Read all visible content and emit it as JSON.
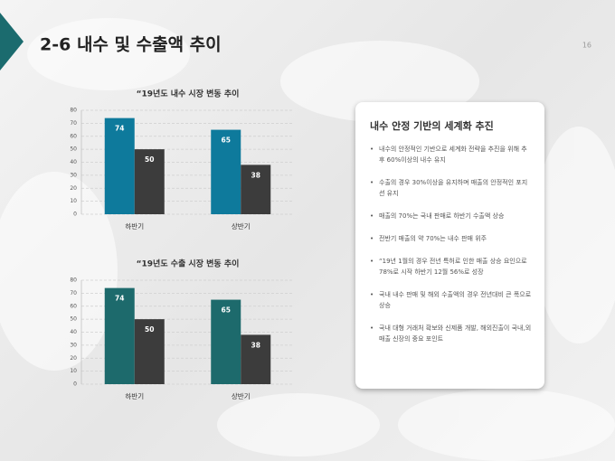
{
  "slide": {
    "title": "2-6 내수 및 수출액 추이",
    "page_number": 16
  },
  "chart_data": [
    {
      "type": "bar",
      "title": "“19년도 내수 시장 변동 추이",
      "categories": [
        "하반기",
        "상반기"
      ],
      "series": [
        {
          "color": "#0e7a9c",
          "values": [
            74,
            65
          ]
        },
        {
          "color": "#3c3c3c",
          "values": [
            50,
            38
          ]
        }
      ],
      "ylim": [
        0,
        80
      ],
      "yticks": [
        0,
        10,
        20,
        30,
        40,
        50,
        60,
        70,
        80
      ],
      "grid": true
    },
    {
      "type": "bar",
      "title": "“19년도 수출 시장 변동 추이",
      "categories": [
        "하반기",
        "상반기"
      ],
      "series": [
        {
          "color": "#1d6a6c",
          "values": [
            74,
            65
          ]
        },
        {
          "color": "#3c3c3c",
          "values": [
            50,
            38
          ]
        }
      ],
      "ylim": [
        0,
        80
      ],
      "yticks": [
        0,
        10,
        20,
        30,
        40,
        50,
        60,
        70,
        80
      ],
      "grid": true
    }
  ],
  "panel": {
    "title": "내수 안정 기반의 세계화 추진",
    "bullets": [
      "내수의 안정적인 기반으로 세계화 전략을 추진을 위해 추후 60%이상의 내수 유지",
      "수출의 경우 30%이상을 유지하며 매출의 안정적인 포지션 유지",
      "매출의 70%는 국내 판매로 하반기 수출액 상승",
      "전반기 매출의 약 70%는 내수 판매 위주",
      "“19년 1월의 경우 전년 특허로 인한 매출 상승 요인으로 78%로 시작 하반기 12월 56%로 성장",
      "국내 내수 판매 및 해외 수출액의 경우 전년대비 큰 폭으로 상승",
      "국내 대형 거래처 확보와 신제품 개발, 해외진출이 국내,외 매출 신장의 중요 포인트"
    ]
  }
}
